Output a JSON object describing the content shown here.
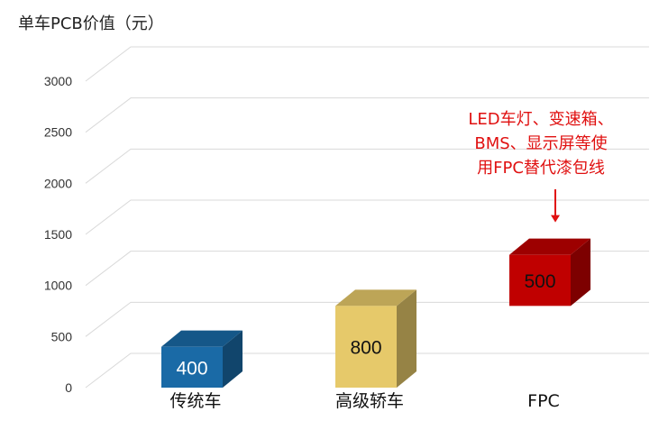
{
  "chart_data": {
    "type": "bar",
    "title": "单车PCB价值（元）",
    "categories": [
      "传统车",
      "高级轿车",
      "FPC"
    ],
    "bars": [
      {
        "base": 0,
        "value": 400,
        "label": "400",
        "color": "#1a6aa6"
      },
      {
        "base": 0,
        "value": 800,
        "label": "800",
        "color": "#e6c96a"
      },
      {
        "base": 800,
        "value": 500,
        "label": "500",
        "color": "#c00000"
      }
    ],
    "ylim": [
      0,
      3000
    ],
    "yticks": [
      "0",
      "500",
      "1000",
      "1500",
      "2000",
      "2500",
      "3000"
    ],
    "grid": true,
    "annotation": {
      "lines": [
        "LED车灯、变速箱、",
        "BMS、显示屏等使",
        "用FPC替代漆包线"
      ],
      "color": "#e01010",
      "target_bar": 2
    }
  }
}
